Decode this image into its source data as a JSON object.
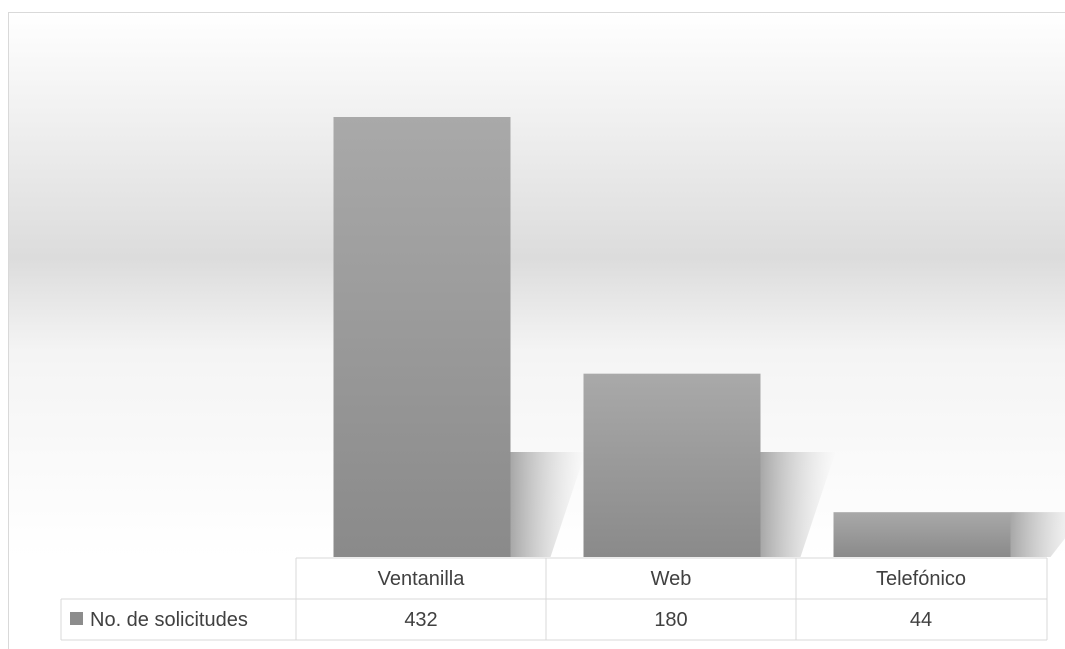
{
  "chart_data": {
    "type": "bar",
    "categories": [
      "Ventanilla",
      "Web",
      "Telefónico"
    ],
    "series": [
      {
        "name": "No. de solicitudes",
        "values": [
          432,
          180,
          44
        ]
      }
    ],
    "data_table": true,
    "legend": "data-table-left",
    "grid": false,
    "ylim": [
      0,
      480
    ]
  },
  "colors": {
    "bar": "#9a9a9a",
    "bar_dark": "#8a8a8a",
    "bar_light": "#a9a9a9",
    "legend_key": "#8c8c8c",
    "table_border": "#d9d9d9",
    "text": "#404040"
  }
}
